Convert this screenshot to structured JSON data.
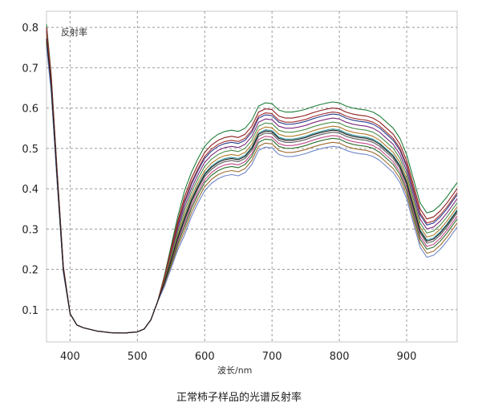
{
  "chart_data": {
    "type": "line",
    "ylabel": "反射率",
    "xlabel": "波长/nm",
    "xlim": [
      365,
      975
    ],
    "ylim": [
      0.02,
      0.84
    ],
    "xticks": [
      400,
      500,
      600,
      700,
      800,
      900
    ],
    "yticks": [
      0.1,
      0.2,
      0.3,
      0.4,
      0.5,
      0.6,
      0.7,
      0.8
    ],
    "ytick_labels": [
      "0.1",
      "0.2",
      "0.3",
      "0.4",
      "0.5",
      "0.6",
      "0.7",
      "0.8"
    ],
    "grid": true,
    "colors": [
      "#1f7f3a",
      "#8c1d1d",
      "#2a3f8f",
      "#7b2a7b",
      "#4d8f4d",
      "#b07a2a",
      "#3a9fa8",
      "#5a5a5a",
      "#c24a8a",
      "#2f6f2f",
      "#9b6b2f",
      "#6f86c8",
      "#a03030",
      "#1c1c1c"
    ],
    "base_curve": {
      "x": [
        365,
        372,
        380,
        390,
        400,
        410,
        420,
        440,
        460,
        480,
        500,
        510,
        520,
        530,
        540,
        550,
        560,
        570,
        580,
        590,
        600,
        610,
        620,
        630,
        640,
        650,
        660,
        670,
        680,
        690,
        700,
        710,
        720,
        730,
        740,
        750,
        760,
        770,
        780,
        790,
        800,
        810,
        820,
        830,
        840,
        850,
        860,
        870,
        880,
        890,
        900,
        910,
        920,
        930,
        940,
        950,
        960,
        975
      ],
      "y": [
        0.78,
        0.66,
        0.45,
        0.2,
        0.09,
        0.062,
        0.055,
        0.047,
        0.043,
        0.042,
        0.045,
        0.052,
        0.075,
        0.12,
        0.17,
        0.23,
        0.29,
        0.34,
        0.385,
        0.42,
        0.45,
        0.468,
        0.48,
        0.487,
        0.49,
        0.487,
        0.495,
        0.515,
        0.55,
        0.558,
        0.556,
        0.54,
        0.535,
        0.535,
        0.538,
        0.542,
        0.548,
        0.553,
        0.557,
        0.56,
        0.558,
        0.55,
        0.545,
        0.542,
        0.54,
        0.535,
        0.525,
        0.51,
        0.495,
        0.47,
        0.43,
        0.37,
        0.31,
        0.285,
        0.29,
        0.305,
        0.325,
        0.36
      ]
    },
    "series_offsets": [
      0.055,
      0.04,
      0.025,
      0.015,
      0.005,
      -0.005,
      -0.012,
      -0.02,
      -0.028,
      -0.035,
      -0.045,
      -0.055,
      0.03,
      -0.015
    ],
    "caption": "正常柿子样品的光谱反射率"
  }
}
